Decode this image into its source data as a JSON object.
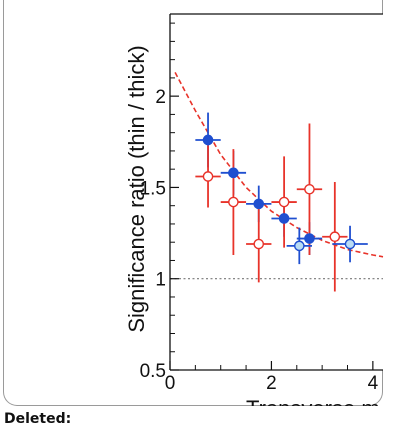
{
  "chart_data": {
    "type": "scatter",
    "ylabel": "Significance ratio (thin / thick)",
    "xlabel": "Transverse m",
    "xlim": [
      0,
      4.2
    ],
    "ylim": [
      0.5,
      2.45
    ],
    "x_ticks": [
      0,
      2,
      4
    ],
    "x_tick_labels": [
      "0",
      "2",
      "4"
    ],
    "y_ticks": [
      0.5,
      1,
      1.5,
      2
    ],
    "y_tick_labels": [
      "0.5",
      "1",
      "1.5",
      "2"
    ],
    "reference_line": {
      "y": 1.0,
      "style": "dotted",
      "color": "#777777"
    },
    "fit_curve": {
      "style": "dashed",
      "color": "#e8332a",
      "x": [
        0.1,
        0.5,
        1.0,
        1.5,
        2.0,
        2.5,
        3.0,
        3.5,
        4.0,
        4.2
      ],
      "y": [
        2.13,
        1.92,
        1.68,
        1.5,
        1.37,
        1.28,
        1.21,
        1.16,
        1.13,
        1.12
      ]
    },
    "series": [
      {
        "marker": "filled-circle",
        "color": "#1f4fd0",
        "errorbar_color": "#1f4fd0",
        "points": [
          {
            "x": 0.75,
            "y": 1.76,
            "xerr": 0.25,
            "yerr": 0.15
          },
          {
            "x": 1.25,
            "y": 1.58,
            "xerr": 0.25,
            "yerr": 0.12
          },
          {
            "x": 1.75,
            "y": 1.41,
            "xerr": 0.25,
            "yerr": 0.1
          },
          {
            "x": 2.25,
            "y": 1.33,
            "xerr": 0.25,
            "yerr": 0.1
          },
          {
            "x": 2.75,
            "y": 1.22,
            "xerr": 0.25,
            "yerr": 0.09
          }
        ]
      },
      {
        "marker": "open-circle",
        "color": "#e8332a",
        "errorbar_color": "#e8332a",
        "points": [
          {
            "x": 0.75,
            "y": 1.56,
            "xerr": 0.25,
            "yerr": 0.17
          },
          {
            "x": 1.25,
            "y": 1.42,
            "xerr": 0.25,
            "yerr": 0.29
          },
          {
            "x": 1.75,
            "y": 1.19,
            "xerr": 0.25,
            "yerr": 0.21
          },
          {
            "x": 2.25,
            "y": 1.42,
            "xerr": 0.25,
            "yerr": 0.25
          },
          {
            "x": 2.75,
            "y": 1.49,
            "xerr": 0.25,
            "yerr": 0.36
          },
          {
            "x": 3.25,
            "y": 1.23,
            "xerr": 0.25,
            "yerr": 0.3
          }
        ]
      },
      {
        "marker": "light-filled-circle",
        "color": "#b9dcf4",
        "errorbar_color": "#1f4fd0",
        "points": [
          {
            "x": 2.55,
            "y": 1.18,
            "xerr": 0.25,
            "yerr": 0.1
          },
          {
            "x": 3.55,
            "y": 1.19,
            "xerr": 0.35,
            "yerr": 0.1
          }
        ]
      }
    ]
  },
  "footer": {
    "label": "Deleted:"
  }
}
